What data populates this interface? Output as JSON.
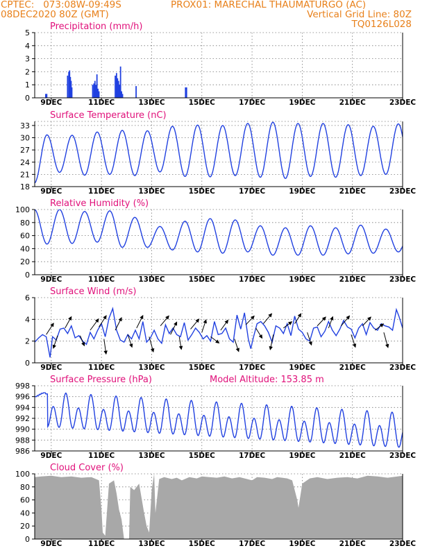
{
  "header": {
    "line1_left": "CPTEC:   073:08W-09:49S",
    "line1_mid": "PROX01: MARECHAL THAUMATURGO (AC)",
    "line2_left": "08DEC2020 80Z (GMT)",
    "line2_right": "Vertical Grid Line: 80Z",
    "line3_right": "TQ0126L028"
  },
  "colors": {
    "header": "#e8801a",
    "title": "#e0107a",
    "series": "#2040e0",
    "cloud": "#a8a8a8",
    "grid": "#777777",
    "frame": "#000000",
    "text": "#000000"
  },
  "chart_data": [
    {
      "type": "bar",
      "title": "Precipitation (mm/h)",
      "ylim": [
        0,
        5
      ],
      "yticks": [
        0,
        1,
        2,
        3,
        4,
        5
      ],
      "x_axis": "day of December 2020",
      "xlim": [
        8.34,
        23.0
      ],
      "xticks": [
        9,
        11,
        13,
        15,
        17,
        19,
        21,
        23
      ],
      "xticklabels": [
        "9DEC",
        "11DEC",
        "13DEC",
        "15DEC",
        "17DEC",
        "19DEC",
        "21DEC",
        "23DEC"
      ],
      "x": [
        8.78,
        8.82,
        9.65,
        9.7,
        9.73,
        9.76,
        9.79,
        9.82,
        10.65,
        10.7,
        10.74,
        10.78,
        10.82,
        10.86,
        10.9,
        11.55,
        11.6,
        11.64,
        11.68,
        11.72,
        11.76,
        11.8,
        11.84,
        12.38,
        14.35,
        14.39
      ],
      "values": [
        0.3,
        0.3,
        1.7,
        2.0,
        2.1,
        1.6,
        1.3,
        0.8,
        1.0,
        1.1,
        1.3,
        1.0,
        1.8,
        0.7,
        0.5,
        1.7,
        1.9,
        1.5,
        1.3,
        1.0,
        2.4,
        0.5,
        0.3,
        0.9,
        0.8,
        0.8
      ]
    },
    {
      "type": "line",
      "title": "Surface Temperature (nC)",
      "ylim": [
        18,
        34
      ],
      "yticks": [
        18,
        21,
        24,
        27,
        30,
        33
      ],
      "x_axis": "day of December 2020",
      "xlim": [
        8.34,
        23.0
      ],
      "xticks": [
        9,
        11,
        13,
        15,
        17,
        19,
        21,
        23
      ],
      "xticklabels": [
        "9DEC",
        "11DEC",
        "13DEC",
        "15DEC",
        "17DEC",
        "19DEC",
        "21DEC",
        "23DEC"
      ],
      "cycle": {
        "base": 23.0,
        "troughs": [
          18.9,
          21.5,
          20.8,
          21.0,
          20.7,
          21.6,
          20.5,
          20.4,
          20.7,
          20.3,
          20.0,
          20.5,
          20.3,
          20.7,
          21.0,
          21.0
        ],
        "peaks": [
          30.7,
          30.6,
          31.4,
          31.8,
          31.7,
          32.8,
          33.1,
          33.0,
          33.5,
          33.8,
          33.5,
          33.5,
          33.2,
          32.8,
          33.4
        ],
        "trough_phase": 0.33,
        "peak_phase": 0.83
      }
    },
    {
      "type": "line",
      "title": "Relative Humidity (%)",
      "ylim": [
        0,
        100
      ],
      "yticks": [
        0,
        20,
        40,
        60,
        80,
        100
      ],
      "x_axis": "day of December 2020",
      "xlim": [
        8.34,
        23.0
      ],
      "xticks": [
        9,
        11,
        13,
        15,
        17,
        19,
        21,
        23
      ],
      "xticklabels": [
        "9DEC",
        "11DEC",
        "13DEC",
        "15DEC",
        "17DEC",
        "19DEC",
        "21DEC",
        "23DEC"
      ],
      "cycle": {
        "base": 100,
        "peaks": [
          100,
          100,
          97,
          98,
          88,
          74,
          82,
          86,
          84,
          75,
          72,
          75,
          72,
          76,
          70,
          70,
          73
        ],
        "troughs": [
          47,
          48,
          50,
          42,
          42,
          38,
          35,
          33,
          35,
          30,
          30,
          30,
          32,
          33,
          35,
          35
        ],
        "peak_phase": 0.33,
        "trough_phase": 0.83
      }
    },
    {
      "type": "line",
      "title": "Surface Wind (m/s)",
      "ylim": [
        0,
        6
      ],
      "yticks": [
        0,
        2,
        4,
        6
      ],
      "x_axis": "day of December 2020",
      "xlim": [
        8.34,
        23.0
      ],
      "xticks": [
        9,
        11,
        13,
        15,
        17,
        19,
        21,
        23
      ],
      "xticklabels": [
        "9DEC",
        "11DEC",
        "13DEC",
        "15DEC",
        "17DEC",
        "19DEC",
        "21DEC",
        "23DEC"
      ],
      "x": [
        8.34,
        8.5,
        8.65,
        8.8,
        8.95,
        9.05,
        9.2,
        9.35,
        9.5,
        9.65,
        9.8,
        9.95,
        10.1,
        10.25,
        10.4,
        10.55,
        10.7,
        10.85,
        11.0,
        11.15,
        11.3,
        11.45,
        11.6,
        11.75,
        11.9,
        12.05,
        12.2,
        12.35,
        12.5,
        12.65,
        12.8,
        12.95,
        13.1,
        13.25,
        13.4,
        13.55,
        13.7,
        13.85,
        14.0,
        14.15,
        14.3,
        14.45,
        14.6,
        14.75,
        14.9,
        15.05,
        15.2,
        15.35,
        15.5,
        15.65,
        15.8,
        15.95,
        16.1,
        16.25,
        16.4,
        16.55,
        16.7,
        16.85,
        16.95,
        17.05,
        17.2,
        17.35,
        17.5,
        17.65,
        17.8,
        17.95,
        18.1,
        18.25,
        18.4,
        18.55,
        18.7,
        18.85,
        19.0,
        19.15,
        19.3,
        19.45,
        19.6,
        19.75,
        19.9,
        20.05,
        20.2,
        20.35,
        20.5,
        20.65,
        20.8,
        20.95,
        21.1,
        21.25,
        21.4,
        21.55,
        21.7,
        21.85,
        22.0,
        22.15,
        22.3,
        22.45,
        22.6,
        22.75,
        22.85,
        23.0
      ],
      "values": [
        1.9,
        2.3,
        2.6,
        2.4,
        0.5,
        2.4,
        2.1,
        3.1,
        3.2,
        2.7,
        3.4,
        2.3,
        2.5,
        2.0,
        1.7,
        2.8,
        2.2,
        3.0,
        3.6,
        2.4,
        4.1,
        5.0,
        3.0,
        2.1,
        1.9,
        2.6,
        2.2,
        3.0,
        2.2,
        3.8,
        1.9,
        2.3,
        3.0,
        2.2,
        1.8,
        3.5,
        2.7,
        3.2,
        2.6,
        2.4,
        3.7,
        2.1,
        2.6,
        3.2,
        2.8,
        2.2,
        2.5,
        2.0,
        3.8,
        2.6,
        2.7,
        3.2,
        2.2,
        1.9,
        4.4,
        3.1,
        4.6,
        2.2,
        1.3,
        2.3,
        3.6,
        3.8,
        3.4,
        2.8,
        1.9,
        3.4,
        3.2,
        2.7,
        3.6,
        2.5,
        4.3,
        3.1,
        2.8,
        2.2,
        2.0,
        3.2,
        3.3,
        2.4,
        2.9,
        3.8,
        3.0,
        2.5,
        3.1,
        3.9,
        3.3,
        3.1,
        2.3,
        3.2,
        3.6,
        2.6,
        3.7,
        3.2,
        3.0,
        3.6,
        3.4,
        3.3,
        3.0,
        4.9,
        4.3,
        3.2
      ],
      "vectors": [
        {
          "x": 8.8,
          "y": 2.6,
          "dx": 0.35,
          "dy": 0.9
        },
        {
          "x": 9.25,
          "y": 2.5,
          "dx": -0.2,
          "dy": -1.0
        },
        {
          "x": 9.55,
          "y": 3.2,
          "dx": 0.3,
          "dy": 0.9
        },
        {
          "x": 10.15,
          "y": 2.5,
          "dx": 0.2,
          "dy": -0.8
        },
        {
          "x": 10.55,
          "y": 3.0,
          "dx": 0.4,
          "dy": 0.9
        },
        {
          "x": 10.9,
          "y": 3.3,
          "dx": 0.35,
          "dy": 0.9
        },
        {
          "x": 11.1,
          "y": 2.2,
          "dx": 0.1,
          "dy": -1.2
        },
        {
          "x": 11.55,
          "y": 3.0,
          "dx": 0.3,
          "dy": 1.0
        },
        {
          "x": 12.05,
          "y": 2.6,
          "dx": 0.2,
          "dy": -1.0
        },
        {
          "x": 12.4,
          "y": 3.2,
          "dx": 0.3,
          "dy": 1.0
        },
        {
          "x": 12.9,
          "y": 2.4,
          "dx": 0.2,
          "dy": -1.2
        },
        {
          "x": 13.35,
          "y": 3.4,
          "dx": 0.4,
          "dy": 0.8
        },
        {
          "x": 13.75,
          "y": 2.6,
          "dx": 0.3,
          "dy": 1.0
        },
        {
          "x": 14.1,
          "y": 2.4,
          "dx": 0.1,
          "dy": -1.0
        },
        {
          "x": 14.55,
          "y": 3.1,
          "dx": 0.4,
          "dy": 0.8
        },
        {
          "x": 15.0,
          "y": 2.8,
          "dx": 0.2,
          "dy": 1.0
        },
        {
          "x": 15.35,
          "y": 2.4,
          "dx": 0.4,
          "dy": -0.5
        },
        {
          "x": 15.75,
          "y": 3.0,
          "dx": 0.35,
          "dy": 0.8
        },
        {
          "x": 16.3,
          "y": 2.2,
          "dx": 0.2,
          "dy": -1.0
        },
        {
          "x": 16.75,
          "y": 3.5,
          "dx": 0.4,
          "dy": 0.7
        },
        {
          "x": 17.15,
          "y": 3.2,
          "dx": 0.3,
          "dy": -0.8
        },
        {
          "x": 17.45,
          "y": 3.6,
          "dx": 0.4,
          "dy": 0.8
        },
        {
          "x": 17.85,
          "y": 2.6,
          "dx": -0.15,
          "dy": -1.2
        },
        {
          "x": 18.25,
          "y": 3.2,
          "dx": 0.4,
          "dy": 0.5
        },
        {
          "x": 18.7,
          "y": 3.6,
          "dx": 0.3,
          "dy": 0.8
        },
        {
          "x": 19.2,
          "y": 2.8,
          "dx": 0.2,
          "dy": -1.0
        },
        {
          "x": 19.6,
          "y": 3.4,
          "dx": 0.4,
          "dy": 0.7
        },
        {
          "x": 20.05,
          "y": 3.2,
          "dx": 0.2,
          "dy": 0.9
        },
        {
          "x": 20.55,
          "y": 3.4,
          "dx": 0.4,
          "dy": 0.8
        },
        {
          "x": 20.95,
          "y": 2.6,
          "dx": 0.2,
          "dy": -1.0
        },
        {
          "x": 21.4,
          "y": 3.4,
          "dx": 0.4,
          "dy": 0.7
        },
        {
          "x": 21.9,
          "y": 3.0,
          "dx": 0.4,
          "dy": 0.5
        },
        {
          "x": 22.25,
          "y": 2.8,
          "dx": 0.2,
          "dy": -1.2
        }
      ]
    },
    {
      "type": "line",
      "title": "Surface Pressure (hPa)",
      "annotation": "Model Altitude: 153.85 m",
      "ylim": [
        986,
        998
      ],
      "yticks": [
        986,
        988,
        990,
        992,
        994,
        996,
        998
      ],
      "x_axis": "day of December 2020",
      "xlim": [
        8.34,
        23.0
      ],
      "xticks": [
        9,
        11,
        13,
        15,
        17,
        19,
        21,
        23
      ],
      "xticklabels": [
        "9DEC",
        "11DEC",
        "13DEC",
        "15DEC",
        "17DEC",
        "19DEC",
        "21DEC",
        "23DEC"
      ],
      "semidiurnal": {
        "base": 993.0,
        "drift": -0.27,
        "amp1": 2.6,
        "amp2": 1.2,
        "peak1_phase": 0.58,
        "peak2_phase": 0.08,
        "clip_min": 985.6
      },
      "head": [
        996.0,
        996.2,
        996.4,
        996.6,
        996.7,
        996.5,
        995.8
      ]
    },
    {
      "type": "area",
      "title": "Cloud Cover (%)",
      "ylim": [
        0,
        100
      ],
      "yticks": [
        0,
        20,
        40,
        60,
        80,
        100
      ],
      "x_axis": "day of December 2020",
      "xlim": [
        8.34,
        23.0
      ],
      "xticks": [
        9,
        11,
        13,
        15,
        17,
        19,
        21,
        23
      ],
      "xticklabels": [
        "9DEC",
        "11DEC",
        "13DEC",
        "15DEC",
        "17DEC",
        "19DEC",
        "21DEC",
        "23DEC"
      ],
      "x": [
        8.34,
        8.6,
        9.0,
        9.4,
        9.8,
        10.2,
        10.6,
        10.9,
        11.0,
        11.05,
        11.15,
        11.3,
        11.5,
        11.6,
        11.7,
        11.8,
        11.9,
        12.0,
        12.1,
        12.15,
        12.3,
        12.5,
        12.7,
        12.8,
        12.9,
        13.0,
        13.1,
        13.15,
        13.3,
        13.5,
        13.8,
        14.0,
        14.2,
        14.5,
        14.8,
        15.0,
        15.3,
        15.6,
        15.9,
        16.2,
        16.5,
        16.8,
        17.0,
        17.2,
        17.5,
        17.8,
        18.0,
        18.2,
        18.4,
        18.6,
        18.8,
        18.85,
        19.0,
        19.3,
        19.6,
        20.0,
        20.4,
        20.8,
        21.2,
        21.6,
        22.0,
        22.4,
        22.8,
        23.0
      ],
      "values": [
        95,
        96,
        97,
        95,
        96,
        94,
        95,
        90,
        45,
        10,
        5,
        85,
        90,
        70,
        45,
        30,
        0,
        0,
        0,
        80,
        75,
        85,
        40,
        20,
        10,
        75,
        100,
        40,
        92,
        95,
        92,
        94,
        90,
        95,
        93,
        96,
        95,
        94,
        96,
        93,
        95,
        92,
        90,
        95,
        94,
        92,
        95,
        94,
        93,
        90,
        60,
        48,
        85,
        93,
        95,
        92,
        94,
        95,
        93,
        97,
        96,
        94,
        96,
        97
      ]
    }
  ]
}
